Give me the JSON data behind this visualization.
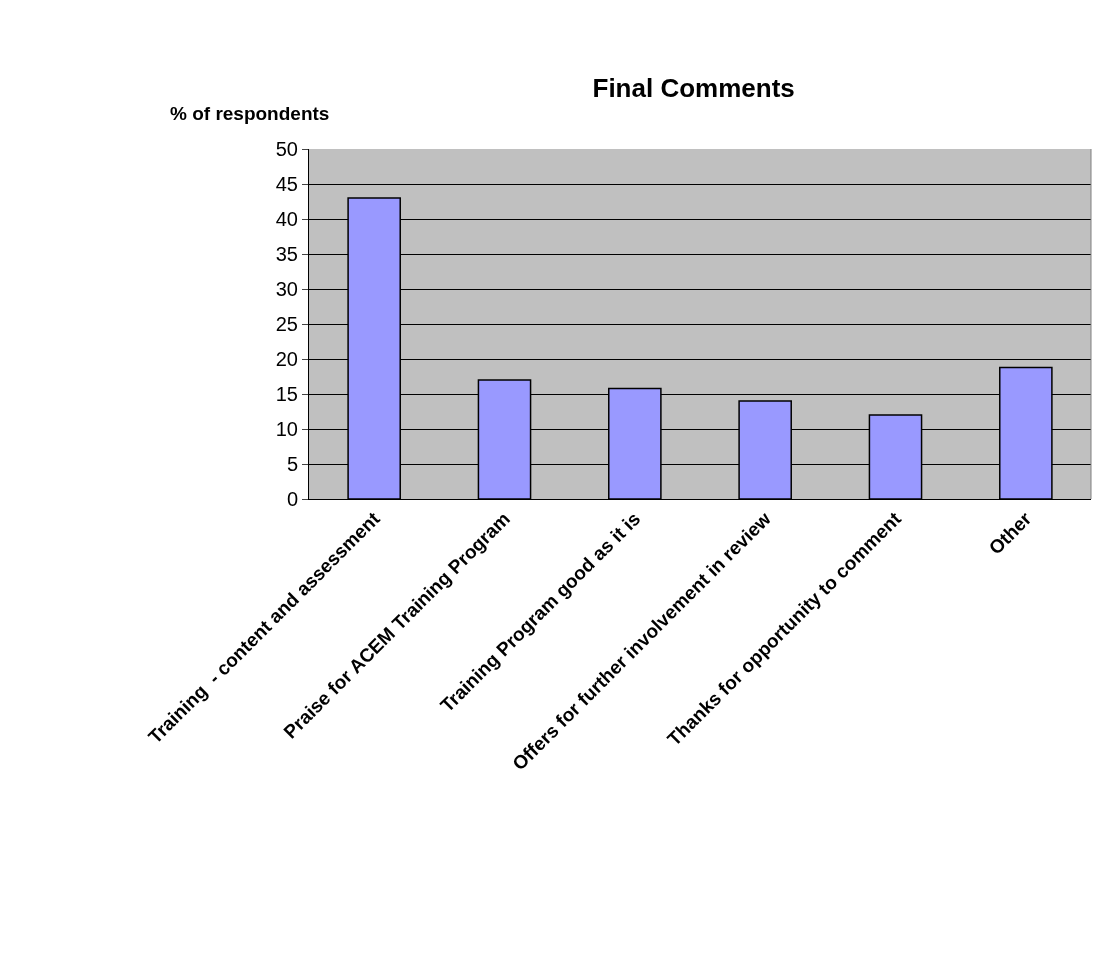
{
  "chart_data": {
    "type": "bar",
    "title": "Final Comments",
    "ylabel": "% of respondents",
    "categories": [
      "Training  - content and assessment",
      "Praise for ACEM Training Program",
      "Training Program good as it is",
      "Offers for further involvement in review",
      "Thanks for opportunity to comment",
      "Other"
    ],
    "values": [
      43,
      17,
      15.8,
      14,
      12,
      18.8
    ],
    "color": "#9999ff",
    "ylim": [
      0,
      50
    ],
    "yticks": [
      0,
      5,
      10,
      15,
      20,
      25,
      30,
      35,
      40,
      45,
      50
    ],
    "grid": "y"
  }
}
